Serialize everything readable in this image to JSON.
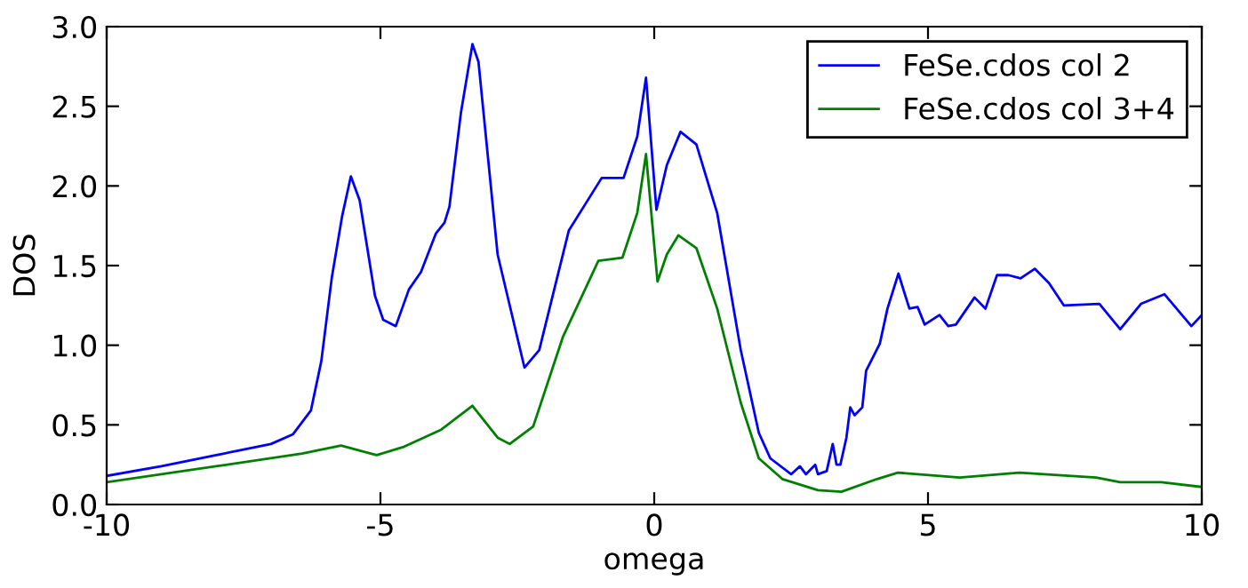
{
  "chart_data": {
    "type": "line",
    "xlabel": "omega",
    "ylabel": "DOS",
    "xlim": [
      -10,
      10
    ],
    "ylim": [
      0,
      3.0
    ],
    "xticks": [
      -10,
      -5,
      0,
      5,
      10
    ],
    "yticks": [
      {
        "value": 0,
        "label": "0.0"
      },
      0.5,
      {
        "value": 1,
        "label": "1.0"
      },
      1.5,
      {
        "value": 2,
        "label": "2.0"
      },
      2.5,
      {
        "value": 3,
        "label": "3.0"
      }
    ],
    "grid": false,
    "legend": "top right",
    "marker": "none",
    "line_style": "solid",
    "series": [
      {
        "name": "FeSe.cdos col 2",
        "color": "#0000ff",
        "x": [
          -10,
          -9,
          -8,
          -7,
          -6.6,
          -6.27,
          -6.08,
          -5.89,
          -5.7,
          -5.54,
          -5.38,
          -5.1,
          -4.95,
          -4.72,
          -4.48,
          -4.26,
          -3.99,
          -3.83,
          -3.74,
          -3.53,
          -3.32,
          -3.21,
          -2.86,
          -2.37,
          -2.1,
          -1.56,
          -0.96,
          -0.56,
          -0.31,
          -0.15,
          0.04,
          0.23,
          0.48,
          0.77,
          1.15,
          1.58,
          1.91,
          2.12,
          2.5,
          2.66,
          2.77,
          2.94,
          2.99,
          3.15,
          3.26,
          3.33,
          3.4,
          3.51,
          3.58,
          3.66,
          3.8,
          3.87,
          4.12,
          4.26,
          4.46,
          4.66,
          4.81,
          4.94,
          5.21,
          5.37,
          5.51,
          5.85,
          6.05,
          6.26,
          6.47,
          6.69,
          6.95,
          7.21,
          7.48,
          8.13,
          8.51,
          8.89,
          9.32,
          9.81,
          10
        ],
        "values": [
          0.18,
          0.24,
          0.31,
          0.38,
          0.44,
          0.59,
          0.9,
          1.42,
          1.81,
          2.06,
          1.91,
          1.31,
          1.16,
          1.12,
          1.35,
          1.46,
          1.7,
          1.77,
          1.87,
          2.46,
          2.89,
          2.78,
          1.57,
          0.86,
          0.97,
          1.72,
          2.05,
          2.05,
          2.31,
          2.68,
          1.85,
          2.13,
          2.34,
          2.26,
          1.83,
          0.97,
          0.45,
          0.29,
          0.19,
          0.24,
          0.19,
          0.25,
          0.19,
          0.21,
          0.38,
          0.25,
          0.25,
          0.42,
          0.61,
          0.56,
          0.61,
          0.84,
          1.01,
          1.23,
          1.45,
          1.23,
          1.24,
          1.13,
          1.19,
          1.12,
          1.13,
          1.3,
          1.23,
          1.44,
          1.44,
          1.42,
          1.48,
          1.39,
          1.25,
          1.26,
          1.1,
          1.26,
          1.32,
          1.12,
          1.19
        ]
      },
      {
        "name": "FeSe.cdos col 3+4",
        "color": "#008000",
        "x": [
          -10,
          -8,
          -6.43,
          -5.72,
          -5.07,
          -4.59,
          -3.89,
          -3.32,
          -2.86,
          -2.64,
          -2.21,
          -1.67,
          -1.02,
          -0.58,
          -0.31,
          -0.15,
          0.06,
          0.23,
          0.44,
          0.77,
          1.15,
          1.58,
          1.91,
          2.34,
          2.99,
          3.42,
          4.07,
          4.45,
          5.58,
          6.67,
          8.07,
          8.51,
          9.26,
          10
        ],
        "values": [
          0.14,
          0.24,
          0.32,
          0.37,
          0.31,
          0.36,
          0.47,
          0.62,
          0.42,
          0.38,
          0.49,
          1.05,
          1.53,
          1.55,
          1.83,
          2.2,
          1.4,
          1.57,
          1.69,
          1.61,
          1.23,
          0.64,
          0.29,
          0.16,
          0.09,
          0.08,
          0.16,
          0.2,
          0.17,
          0.2,
          0.17,
          0.14,
          0.14,
          0.11
        ]
      }
    ]
  }
}
